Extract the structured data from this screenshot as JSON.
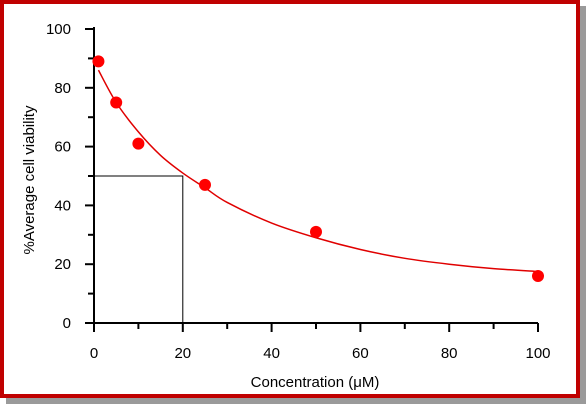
{
  "chart_data": {
    "type": "scatter",
    "title": "",
    "xlabel": "Concentration (μM)",
    "ylabel": "%Average cell viability",
    "xlim": [
      0,
      100
    ],
    "ylim": [
      0,
      100
    ],
    "x_ticks": [
      0,
      20,
      40,
      60,
      80,
      100
    ],
    "y_ticks": [
      0,
      20,
      40,
      60,
      80,
      100
    ],
    "x_tick_labels": [
      "0",
      "20",
      "40",
      "60",
      "80",
      "100"
    ],
    "y_tick_labels": [
      "0",
      "20",
      "40",
      "60",
      "80",
      "100"
    ],
    "grid": false,
    "series": [
      {
        "points": [
          {
            "x": 1,
            "y": 89
          },
          {
            "x": 5,
            "y": 75
          },
          {
            "x": 10,
            "y": 61
          },
          {
            "x": 25,
            "y": 47
          },
          {
            "x": 50,
            "y": 31
          },
          {
            "x": 100,
            "y": 16
          }
        ],
        "color": "#ff0000"
      }
    ],
    "fit_curve": {
      "color": "#e00000",
      "x_range": [
        1,
        100
      ],
      "points": [
        {
          "x": 1,
          "y": 86
        },
        {
          "x": 5,
          "y": 75
        },
        {
          "x": 10,
          "y": 65
        },
        {
          "x": 15,
          "y": 57
        },
        {
          "x": 20,
          "y": 51
        },
        {
          "x": 25,
          "y": 46
        },
        {
          "x": 30,
          "y": 41
        },
        {
          "x": 40,
          "y": 34
        },
        {
          "x": 50,
          "y": 29
        },
        {
          "x": 60,
          "y": 25
        },
        {
          "x": 70,
          "y": 22
        },
        {
          "x": 80,
          "y": 20
        },
        {
          "x": 90,
          "y": 18.5
        },
        {
          "x": 100,
          "y": 17.5
        }
      ]
    },
    "ic50_guide": {
      "x": 20,
      "y": 50,
      "color": "#000000"
    }
  }
}
